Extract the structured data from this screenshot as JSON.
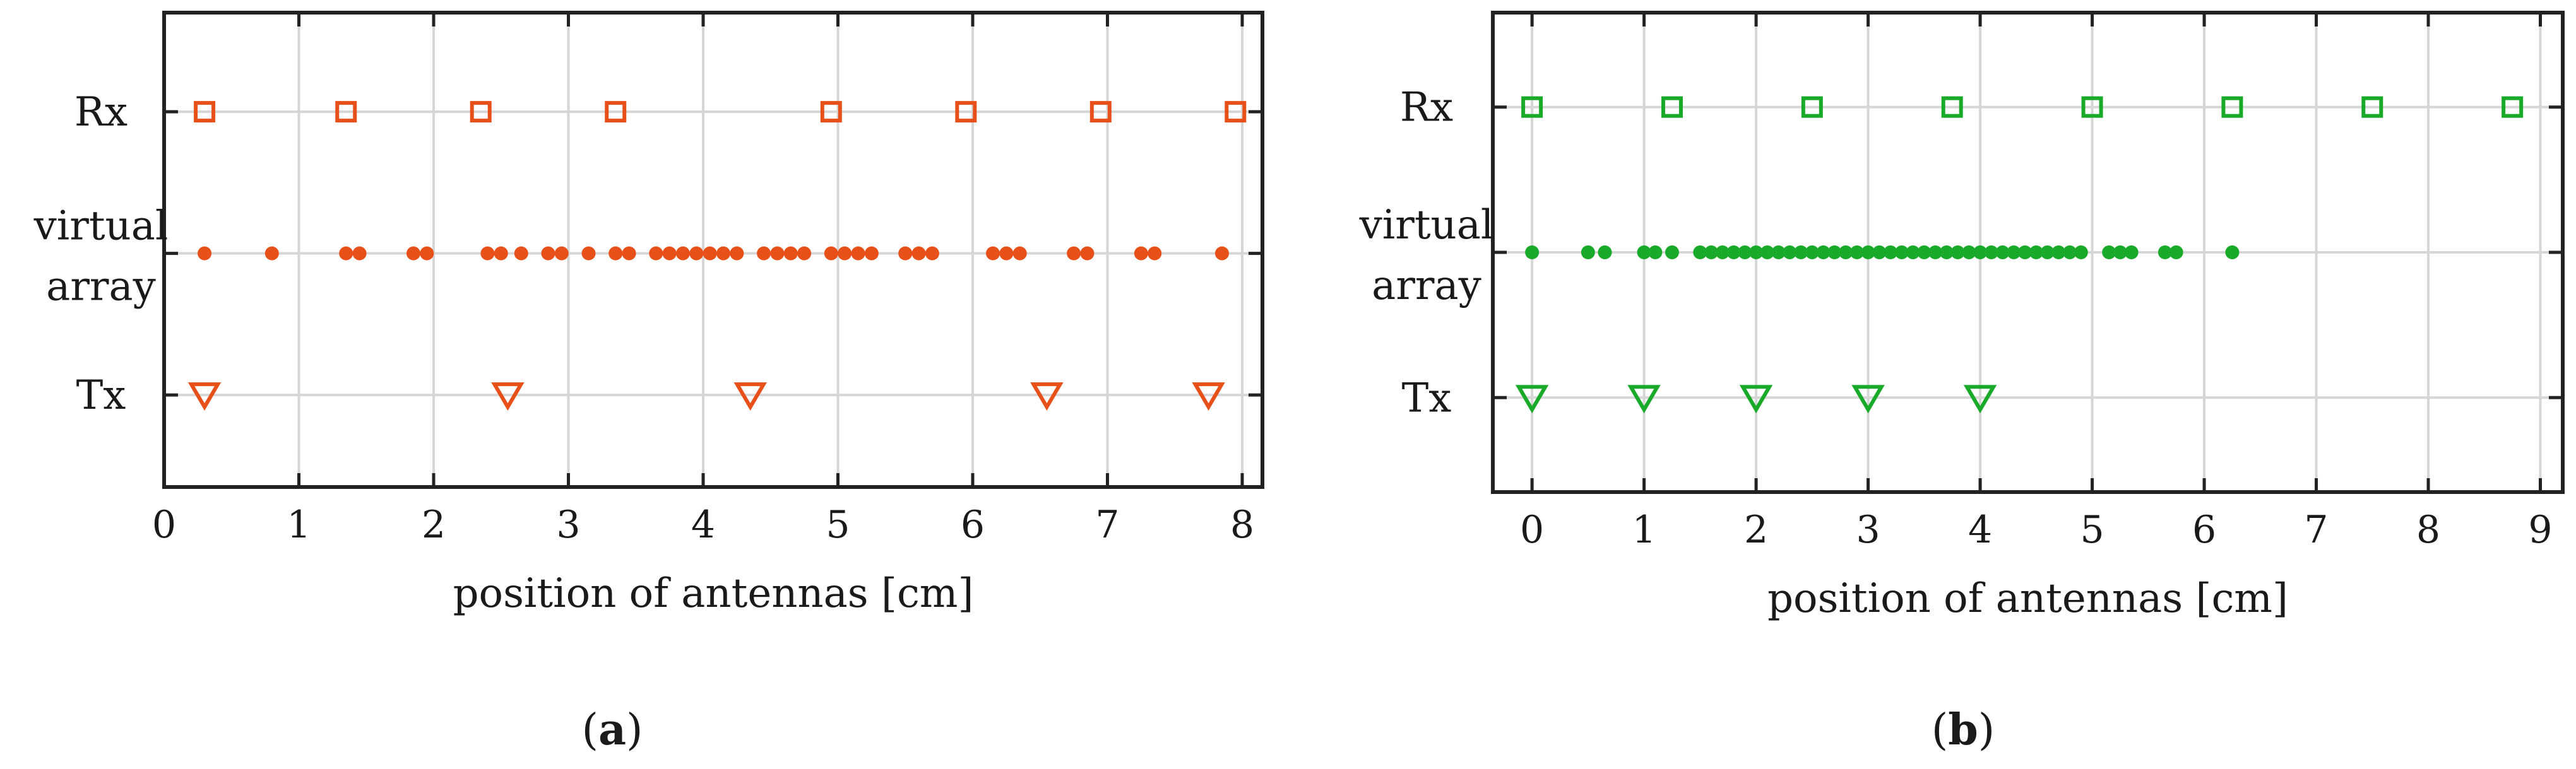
{
  "chart_data": [
    {
      "panel": "a",
      "type": "scatter",
      "title": "",
      "xlabel": "position of antennas [cm]",
      "ylabel": "",
      "xlim": [
        0,
        8.15
      ],
      "xticks": [
        0,
        1,
        2,
        3,
        4,
        5,
        6,
        7,
        8
      ],
      "xtick_labels": [
        "0",
        "1",
        "2",
        "3",
        "4",
        "5",
        "6",
        "7",
        "8"
      ],
      "ylim": [
        -0.65,
        2.7
      ],
      "rows": [
        {
          "key": "rx",
          "label": "Rx",
          "y": 2
        },
        {
          "key": "virtual",
          "label_lines": [
            "virtual",
            "array"
          ],
          "y": 1
        },
        {
          "key": "tx",
          "label": "Tx",
          "y": 0
        }
      ],
      "grid": true,
      "color": "#e8501a",
      "series": [
        {
          "name": "Rx",
          "marker": "square-open",
          "y": 2,
          "x": [
            0.3,
            1.35,
            2.35,
            3.35,
            4.95,
            5.95,
            6.95,
            7.95
          ]
        },
        {
          "name": "virtual array",
          "marker": "circle-filled",
          "y": 1,
          "x": [
            0.3,
            0.8,
            1.35,
            1.45,
            1.85,
            1.95,
            2.4,
            2.5,
            2.65,
            2.85,
            2.95,
            3.15,
            3.35,
            3.45,
            3.65,
            3.75,
            3.85,
            3.95,
            4.05,
            4.15,
            4.25,
            4.45,
            4.55,
            4.65,
            4.75,
            4.95,
            5.05,
            5.15,
            5.25,
            5.5,
            5.6,
            5.7,
            6.15,
            6.25,
            6.35,
            6.75,
            6.85,
            7.25,
            7.35,
            7.85
          ]
        },
        {
          "name": "Tx",
          "marker": "triangle-down-open",
          "y": 0,
          "x": [
            0.3,
            2.55,
            4.35,
            6.55,
            7.75
          ]
        }
      ],
      "caption": "(a)"
    },
    {
      "panel": "b",
      "type": "scatter",
      "title": "",
      "xlabel": "position of antennas [cm]",
      "ylabel": "",
      "xlim": [
        -0.35,
        9.2
      ],
      "xticks": [
        0,
        1,
        2,
        3,
        4,
        5,
        6,
        7,
        8,
        9
      ],
      "xtick_labels": [
        "0",
        "1",
        "2",
        "3",
        "4",
        "5",
        "6",
        "7",
        "8",
        "9"
      ],
      "ylim": [
        -0.65,
        2.65
      ],
      "rows": [
        {
          "key": "rx",
          "label": "Rx",
          "y": 2
        },
        {
          "key": "virtual",
          "label_lines": [
            "virtual",
            "array"
          ],
          "y": 1
        },
        {
          "key": "tx",
          "label": "Tx",
          "y": 0
        }
      ],
      "grid": true,
      "color": "#1aaa2a",
      "series": [
        {
          "name": "Rx",
          "marker": "square-open",
          "y": 2,
          "x": [
            0,
            1.25,
            2.5,
            3.75,
            5,
            6.25,
            7.5,
            8.75
          ]
        },
        {
          "name": "virtual array",
          "marker": "circle-filled",
          "y": 1,
          "x": [
            0,
            0.5,
            0.65,
            1,
            1.1,
            1.25,
            1.5,
            1.6,
            1.7,
            1.8,
            1.9,
            2.0,
            2.1,
            2.2,
            2.3,
            2.4,
            2.5,
            2.6,
            2.7,
            2.8,
            2.9,
            3.0,
            3.1,
            3.2,
            3.3,
            3.4,
            3.5,
            3.6,
            3.7,
            3.8,
            3.9,
            4.0,
            4.1,
            4.2,
            4.3,
            4.4,
            4.5,
            4.6,
            4.7,
            4.8,
            4.9,
            5.15,
            5.25,
            5.35,
            5.65,
            5.75,
            6.25
          ]
        },
        {
          "name": "Tx",
          "marker": "triangle-down-open",
          "y": 0,
          "x": [
            0,
            1,
            2,
            3,
            4
          ]
        }
      ],
      "caption": "(b)"
    }
  ]
}
